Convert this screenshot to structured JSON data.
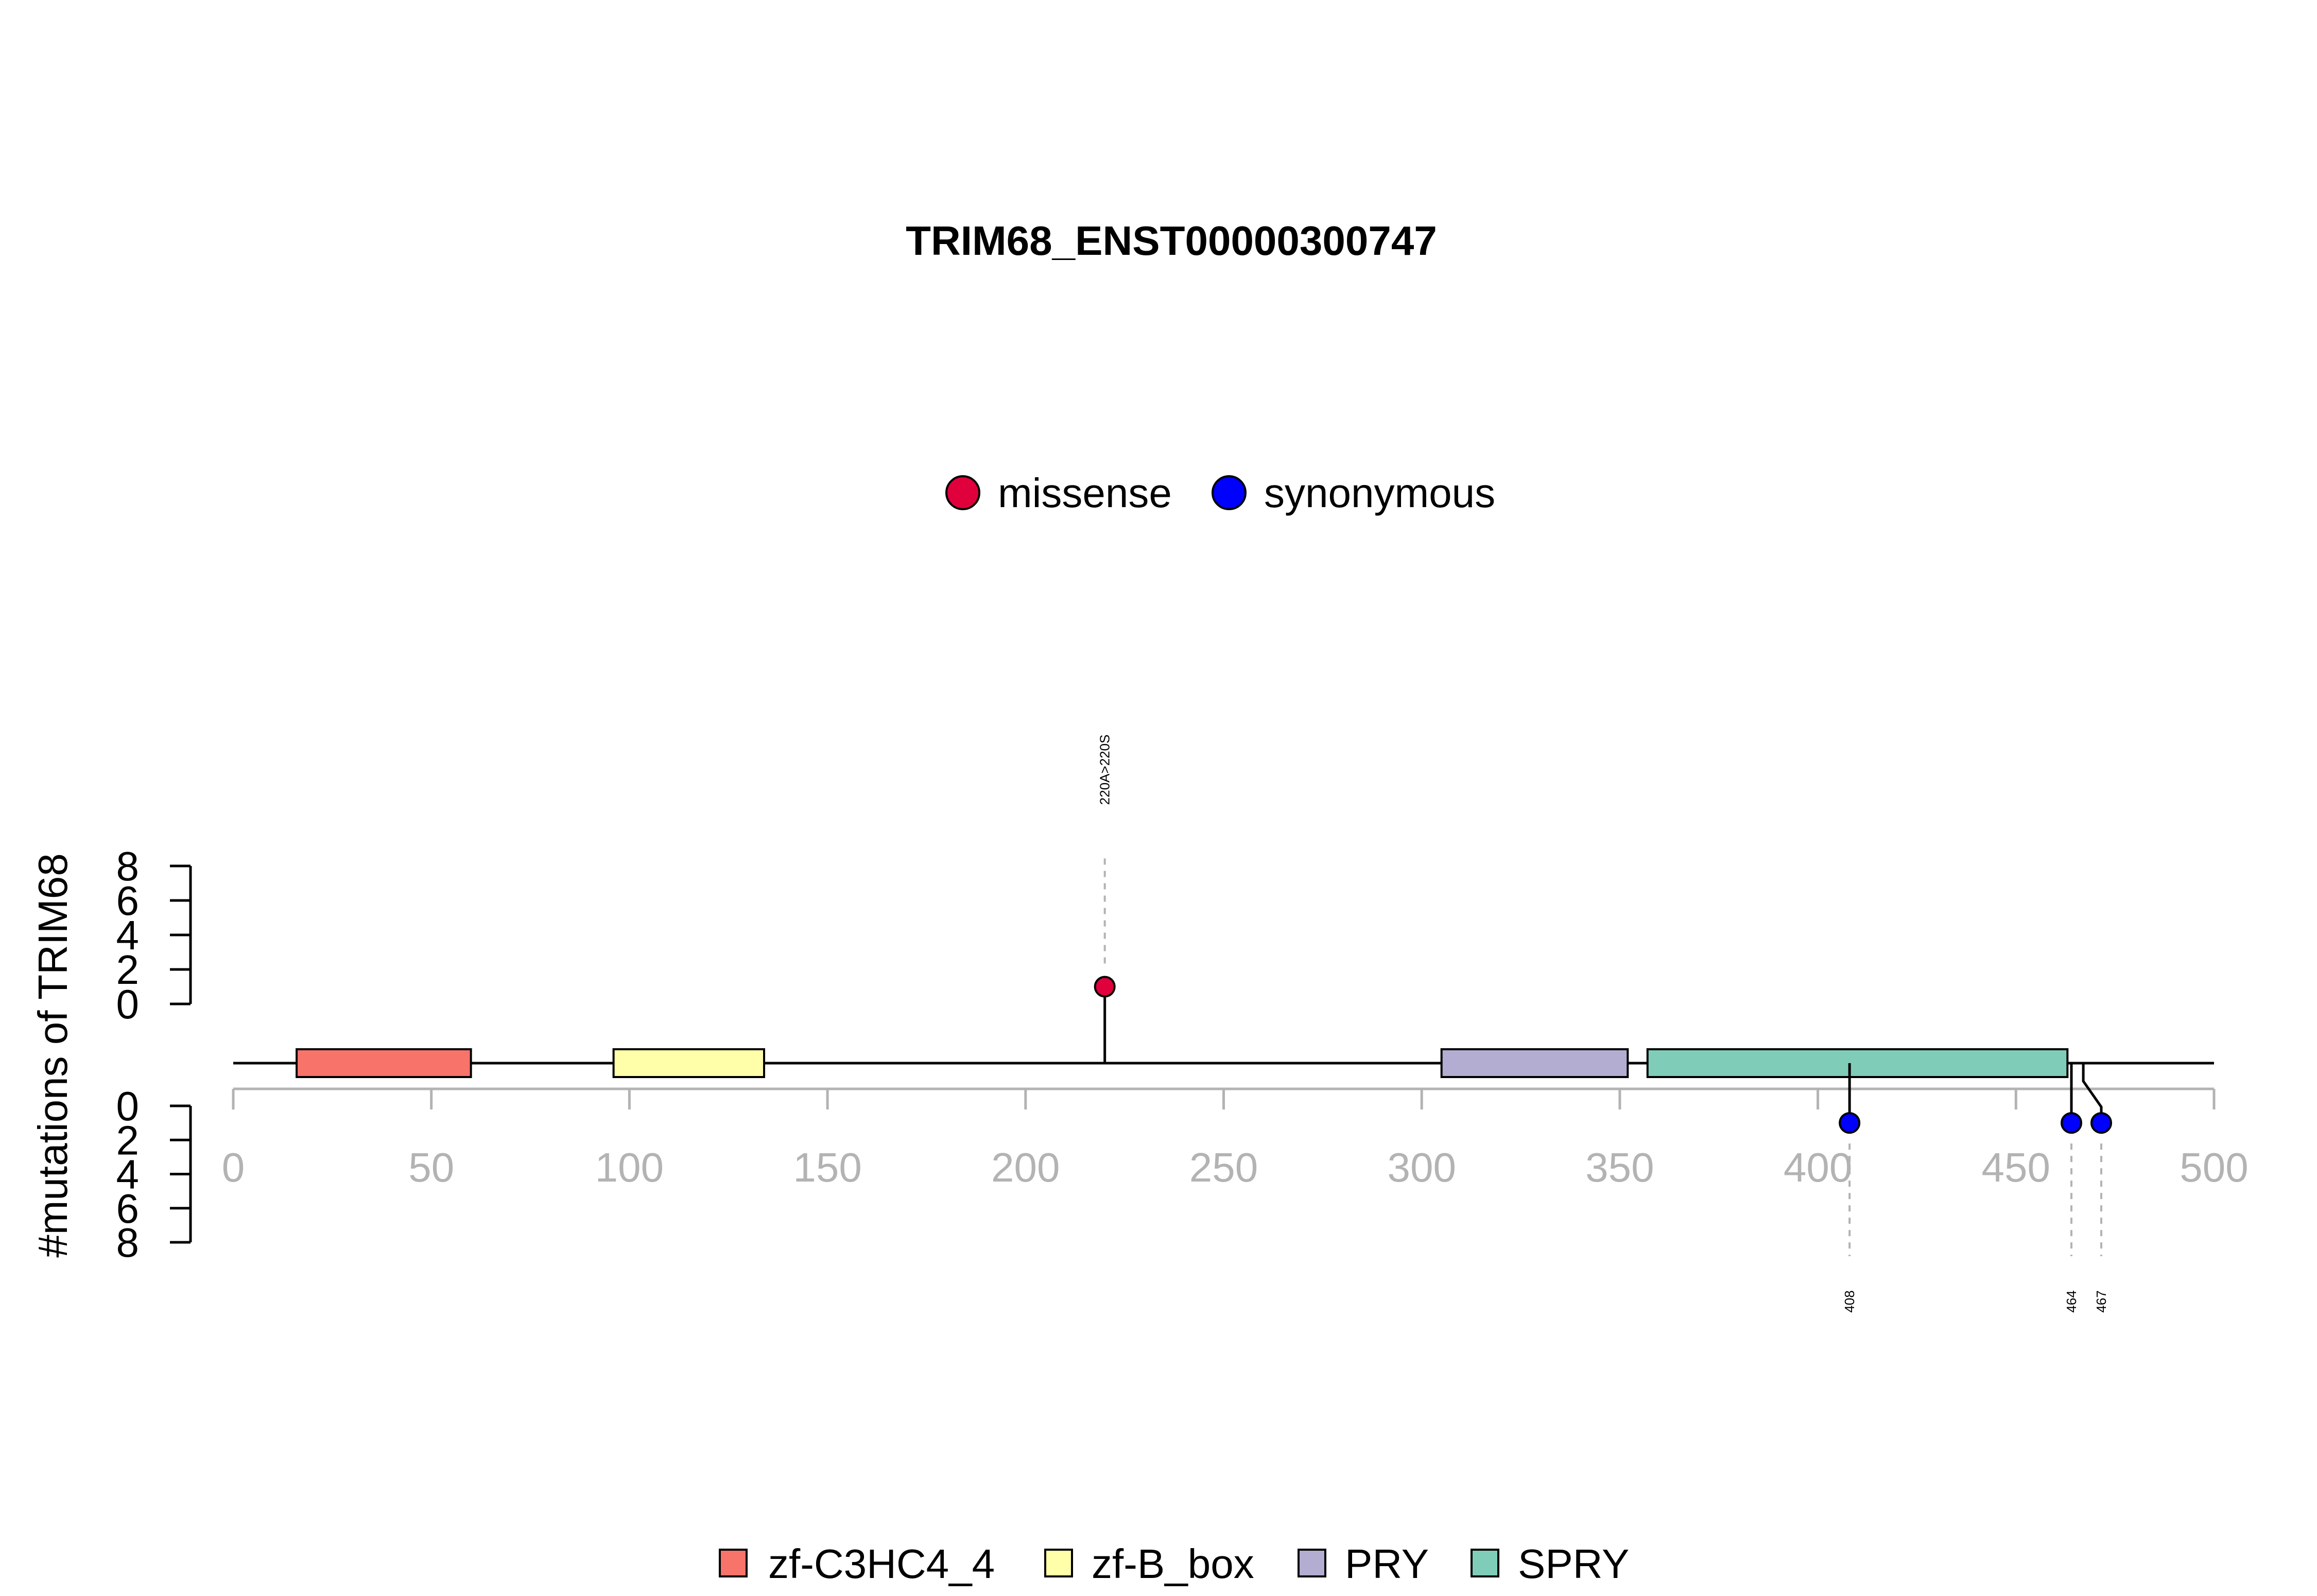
{
  "chart_data": {
    "type": "lollipop",
    "title": "TRIM68_ENST00000300747",
    "ylabel": "#mutations of TRIM68",
    "xlim": [
      0,
      500
    ],
    "x_ticks": [
      0,
      50,
      100,
      150,
      200,
      250,
      300,
      350,
      400,
      450,
      500
    ],
    "y_ticks": [
      0,
      2,
      4,
      6,
      8
    ],
    "protein_length": 500,
    "mutation_legend": [
      {
        "name": "missense",
        "color": "#E0003C"
      },
      {
        "name": "synonymous",
        "color": "#0000FF"
      }
    ],
    "domains": [
      {
        "name": "zf-C3HC4_4",
        "start": 16,
        "end": 60,
        "color": "#F8736A"
      },
      {
        "name": "zf-B_box",
        "start": 96,
        "end": 134,
        "color": "#FFFFAA"
      },
      {
        "name": "PRY",
        "start": 305,
        "end": 352,
        "color": "#B2ADD1"
      },
      {
        "name": "SPRY",
        "start": 357,
        "end": 463,
        "color": "#7FCDB9"
      }
    ],
    "mutations": [
      {
        "position": 220,
        "count": 1,
        "type": "missense",
        "side": "top",
        "label": "220A>220S"
      },
      {
        "position": 408,
        "count": 1,
        "type": "synonymous",
        "side": "bottom",
        "label": "408"
      },
      {
        "position": 464,
        "count": 1,
        "type": "synonymous",
        "side": "bottom",
        "label": "464"
      },
      {
        "position": 467,
        "count": 1,
        "type": "synonymous",
        "side": "bottom",
        "label": "467"
      }
    ]
  }
}
